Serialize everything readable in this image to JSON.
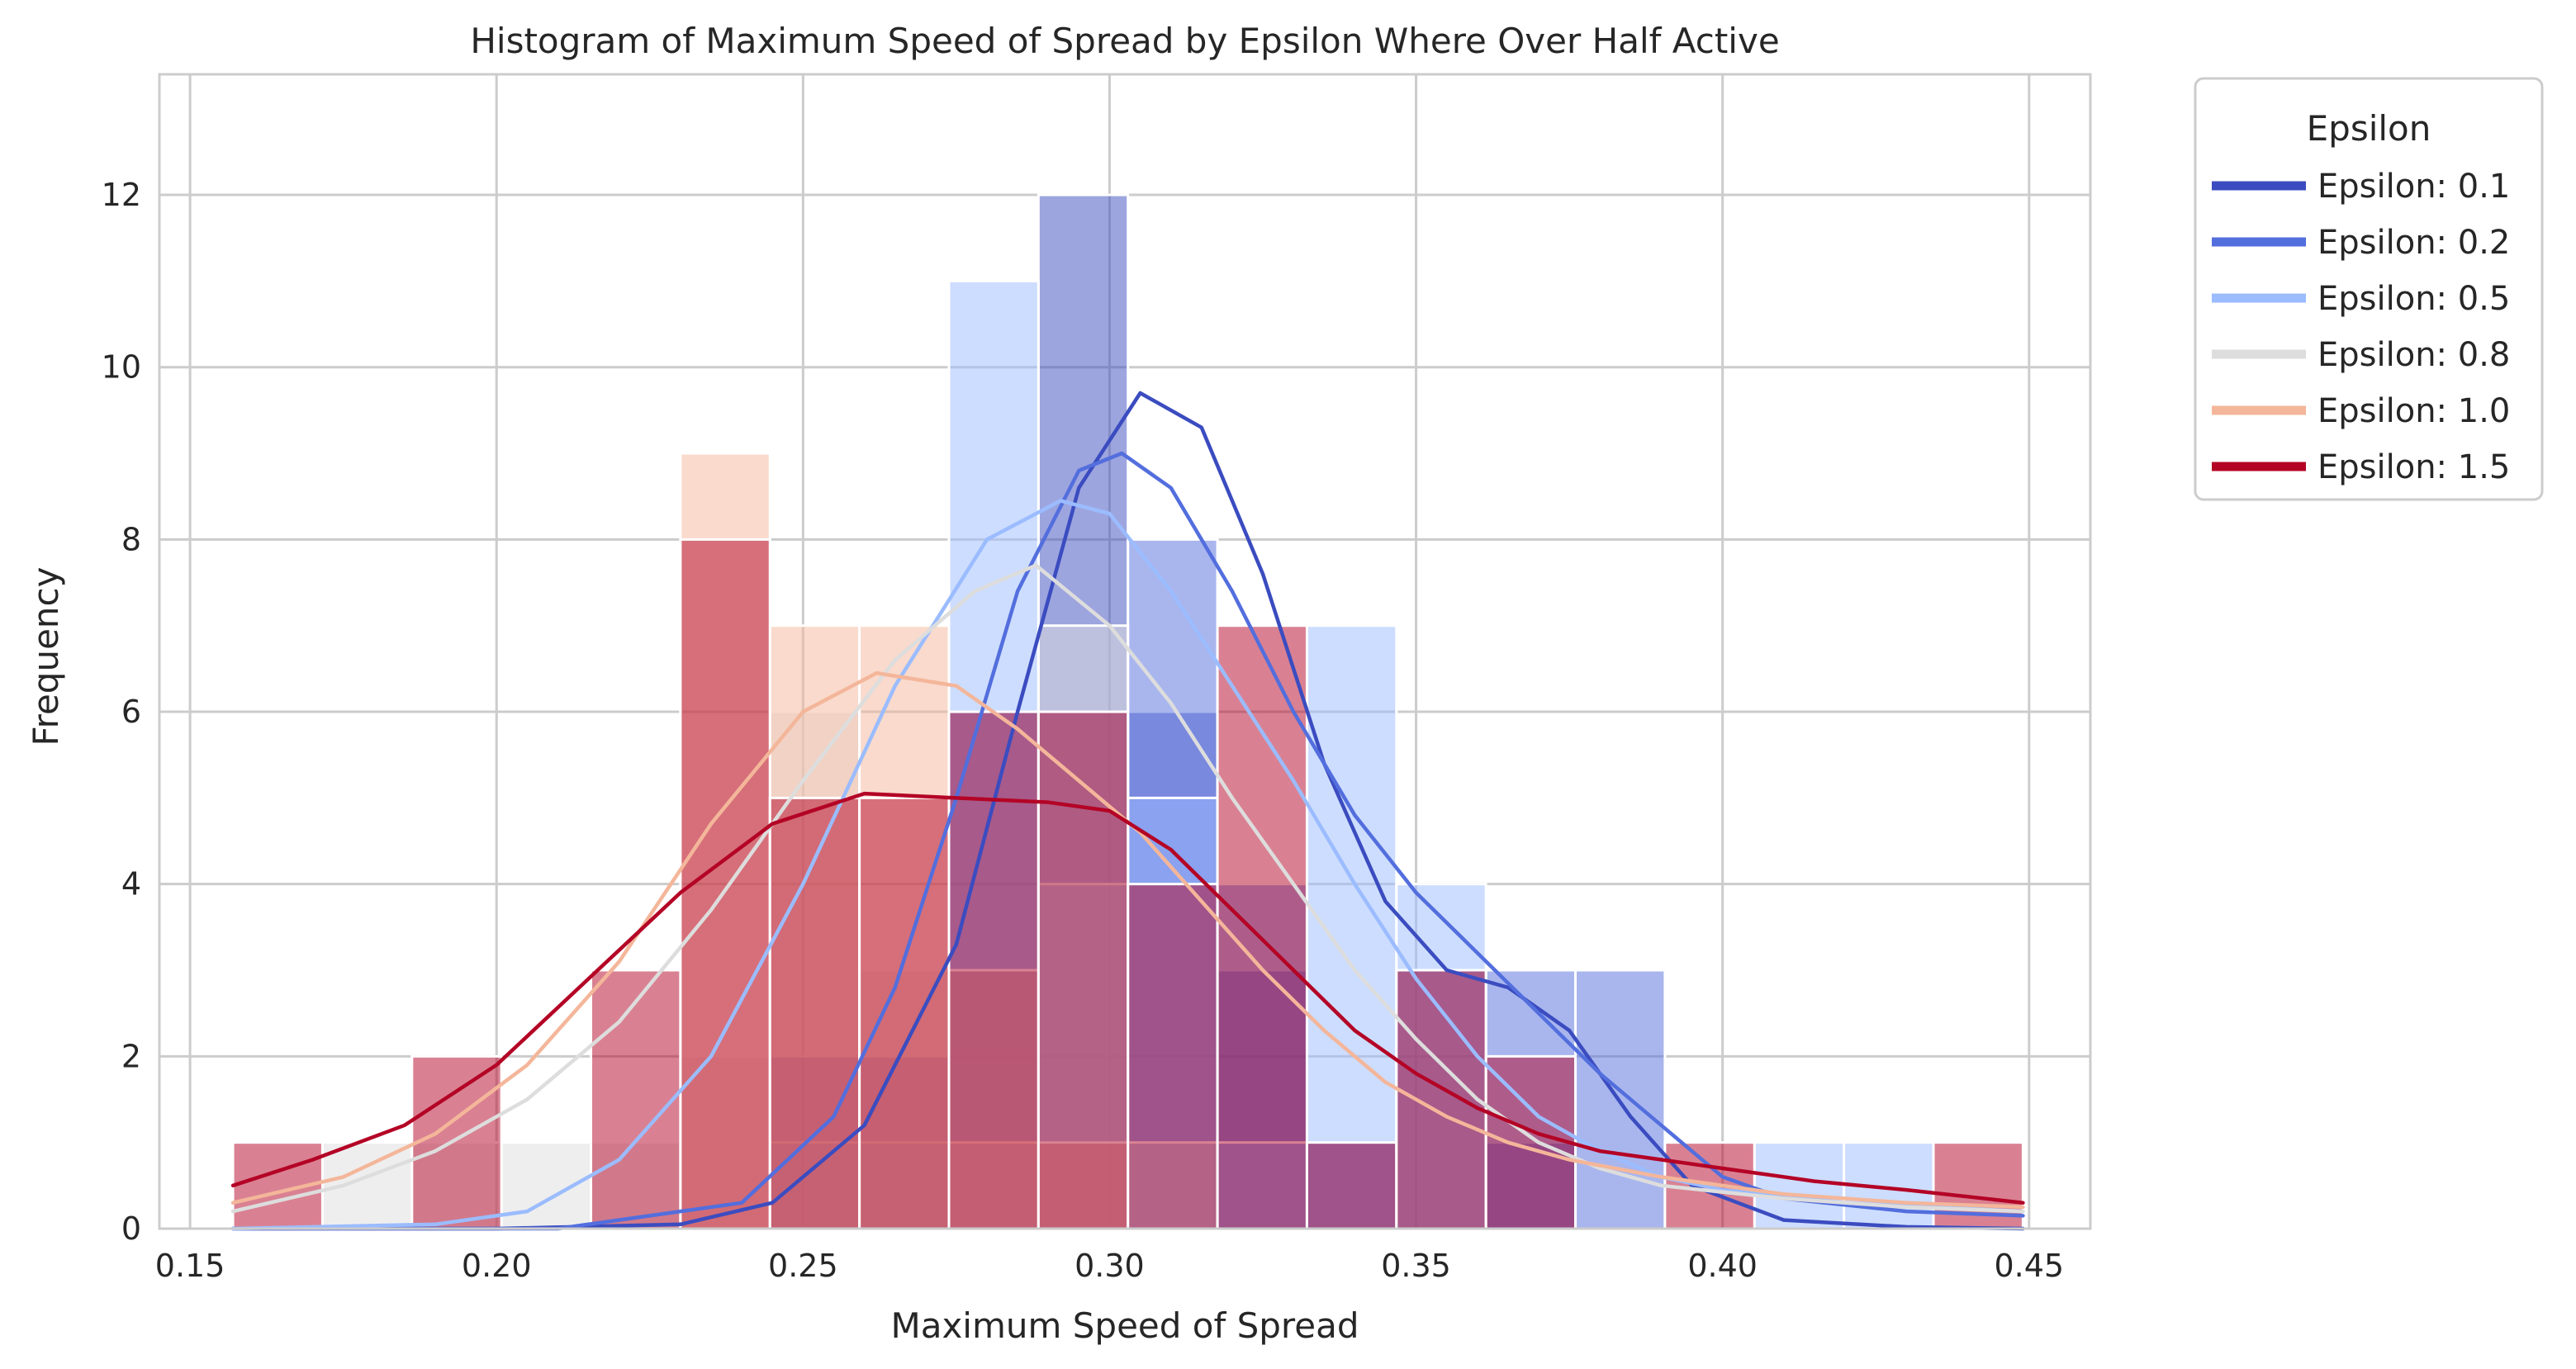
{
  "chart_data": {
    "type": "histogram",
    "title": "Histogram of Maximum Speed of Spread by Epsilon Where Over Half Active",
    "xlabel": "Maximum Speed of Spread",
    "ylabel": "Frequency",
    "xlim": [
      0.145,
      0.46
    ],
    "ylim": [
      0,
      13.4
    ],
    "xticks": [
      0.15,
      0.2,
      0.25,
      0.3,
      0.35,
      0.4,
      0.45
    ],
    "xtick_labels": [
      "0.15",
      "0.20",
      "0.25",
      "0.30",
      "0.35",
      "0.40",
      "0.45"
    ],
    "yticks": [
      0,
      2,
      4,
      6,
      8,
      10,
      12
    ],
    "ytick_labels": [
      "0",
      "2",
      "4",
      "6",
      "8",
      "10",
      "12"
    ],
    "grid": true,
    "legend": {
      "title": "Epsilon",
      "placement": "outside-top-right"
    },
    "bin_edges": [
      0.157,
      0.1716,
      0.1862,
      0.2008,
      0.2154,
      0.23,
      0.2446,
      0.2592,
      0.2738,
      0.2884,
      0.303,
      0.3176,
      0.3322,
      0.3468,
      0.3614,
      0.376,
      0.3906,
      0.4052,
      0.4198,
      0.4344,
      0.449
    ],
    "series": [
      {
        "name": "Epsilon: 0.1",
        "color": "#3b4cc0",
        "counts": [
          0,
          0,
          0,
          0,
          0,
          0,
          2,
          2,
          6,
          12,
          6,
          3,
          1,
          3,
          1,
          0,
          0,
          0,
          0,
          0
        ],
        "kde": [
          [
            0.157,
            0
          ],
          [
            0.2,
            0
          ],
          [
            0.23,
            0.05
          ],
          [
            0.245,
            0.3
          ],
          [
            0.26,
            1.2
          ],
          [
            0.275,
            3.3
          ],
          [
            0.285,
            6.0
          ],
          [
            0.295,
            8.6
          ],
          [
            0.305,
            9.7
          ],
          [
            0.315,
            9.3
          ],
          [
            0.325,
            7.6
          ],
          [
            0.335,
            5.4
          ],
          [
            0.345,
            3.8
          ],
          [
            0.355,
            3.0
          ],
          [
            0.365,
            2.8
          ],
          [
            0.375,
            2.3
          ],
          [
            0.385,
            1.3
          ],
          [
            0.395,
            0.5
          ],
          [
            0.41,
            0.1
          ],
          [
            0.43,
            0.02
          ],
          [
            0.449,
            0
          ]
        ]
      },
      {
        "name": "Epsilon: 0.2",
        "color": "#536edd",
        "counts": [
          0,
          0,
          0,
          0,
          0,
          0,
          0,
          0,
          3,
          6,
          8,
          4,
          1,
          0,
          3,
          3,
          0,
          0,
          0,
          0
        ],
        "kde": [
          [
            0.157,
            0
          ],
          [
            0.21,
            0
          ],
          [
            0.24,
            0.3
          ],
          [
            0.255,
            1.3
          ],
          [
            0.265,
            2.8
          ],
          [
            0.275,
            5.0
          ],
          [
            0.285,
            7.4
          ],
          [
            0.295,
            8.8
          ],
          [
            0.302,
            9.0
          ],
          [
            0.31,
            8.6
          ],
          [
            0.32,
            7.4
          ],
          [
            0.33,
            6.0
          ],
          [
            0.34,
            4.8
          ],
          [
            0.35,
            3.9
          ],
          [
            0.36,
            3.2
          ],
          [
            0.37,
            2.5
          ],
          [
            0.38,
            1.8
          ],
          [
            0.39,
            1.2
          ],
          [
            0.4,
            0.6
          ],
          [
            0.41,
            0.35
          ],
          [
            0.43,
            0.2
          ],
          [
            0.449,
            0.15
          ]
        ]
      },
      {
        "name": "Epsilon: 0.5",
        "color": "#9bbcff",
        "counts": [
          0,
          0,
          0,
          0,
          0,
          0,
          1,
          1,
          11,
          4,
          5,
          1,
          7,
          4,
          0,
          0,
          0,
          1,
          1,
          0
        ],
        "kde": [
          [
            0.157,
            0
          ],
          [
            0.19,
            0.05
          ],
          [
            0.205,
            0.2
          ],
          [
            0.22,
            0.8
          ],
          [
            0.235,
            2.0
          ],
          [
            0.25,
            4.0
          ],
          [
            0.265,
            6.3
          ],
          [
            0.28,
            8.0
          ],
          [
            0.292,
            8.45
          ],
          [
            0.3,
            8.3
          ],
          [
            0.31,
            7.4
          ],
          [
            0.32,
            6.3
          ],
          [
            0.33,
            5.2
          ],
          [
            0.34,
            4.0
          ],
          [
            0.35,
            2.9
          ],
          [
            0.36,
            2.0
          ],
          [
            0.37,
            1.3
          ],
          [
            0.38,
            0.9
          ],
          [
            0.39,
            0.6
          ],
          [
            0.4,
            0.45
          ],
          [
            0.42,
            0.3
          ],
          [
            0.449,
            0.2
          ]
        ]
      },
      {
        "name": "Epsilon: 0.8",
        "color": "#dddddd",
        "counts": [
          0,
          1,
          1,
          1,
          1,
          2,
          6,
          3,
          1,
          7,
          1,
          0,
          0,
          0,
          0,
          0,
          0,
          0,
          0,
          0
        ],
        "kde": [
          [
            0.157,
            0.2
          ],
          [
            0.175,
            0.5
          ],
          [
            0.19,
            0.9
          ],
          [
            0.205,
            1.5
          ],
          [
            0.22,
            2.4
          ],
          [
            0.235,
            3.7
          ],
          [
            0.25,
            5.2
          ],
          [
            0.265,
            6.6
          ],
          [
            0.278,
            7.4
          ],
          [
            0.288,
            7.7
          ],
          [
            0.3,
            7.0
          ],
          [
            0.31,
            6.1
          ],
          [
            0.32,
            5.0
          ],
          [
            0.33,
            4.0
          ],
          [
            0.34,
            3.0
          ],
          [
            0.35,
            2.2
          ],
          [
            0.36,
            1.5
          ],
          [
            0.37,
            1.0
          ],
          [
            0.38,
            0.7
          ],
          [
            0.39,
            0.5
          ],
          [
            0.41,
            0.35
          ],
          [
            0.43,
            0.25
          ],
          [
            0.449,
            0.2
          ]
        ]
      },
      {
        "name": "Epsilon: 1.0",
        "color": "#f4b69a",
        "counts": [
          0,
          0,
          0,
          0,
          0,
          9,
          7,
          7,
          3,
          1,
          0,
          0,
          0,
          0,
          0,
          0,
          0,
          0,
          0,
          0
        ],
        "kde": [
          [
            0.157,
            0.3
          ],
          [
            0.175,
            0.6
          ],
          [
            0.19,
            1.1
          ],
          [
            0.205,
            1.9
          ],
          [
            0.22,
            3.1
          ],
          [
            0.235,
            4.7
          ],
          [
            0.25,
            6.0
          ],
          [
            0.262,
            6.45
          ],
          [
            0.275,
            6.3
          ],
          [
            0.285,
            5.8
          ],
          [
            0.295,
            5.2
          ],
          [
            0.305,
            4.6
          ],
          [
            0.315,
            3.8
          ],
          [
            0.325,
            3.0
          ],
          [
            0.335,
            2.3
          ],
          [
            0.345,
            1.7
          ],
          [
            0.355,
            1.3
          ],
          [
            0.365,
            1.0
          ],
          [
            0.375,
            0.8
          ],
          [
            0.39,
            0.6
          ],
          [
            0.41,
            0.4
          ],
          [
            0.43,
            0.3
          ],
          [
            0.449,
            0.25
          ]
        ]
      },
      {
        "name": "Epsilon: 1.5",
        "color": "#b40426",
        "counts": [
          1,
          0,
          2,
          0,
          3,
          8,
          5,
          5,
          6,
          6,
          4,
          7,
          1,
          3,
          2,
          0,
          1,
          0,
          0,
          1
        ],
        "kde": [
          [
            0.157,
            0.5
          ],
          [
            0.17,
            0.8
          ],
          [
            0.185,
            1.2
          ],
          [
            0.2,
            1.9
          ],
          [
            0.215,
            2.9
          ],
          [
            0.23,
            3.9
          ],
          [
            0.245,
            4.7
          ],
          [
            0.26,
            5.05
          ],
          [
            0.275,
            5.0
          ],
          [
            0.29,
            4.95
          ],
          [
            0.3,
            4.85
          ],
          [
            0.31,
            4.4
          ],
          [
            0.32,
            3.7
          ],
          [
            0.33,
            3.0
          ],
          [
            0.34,
            2.3
          ],
          [
            0.35,
            1.8
          ],
          [
            0.36,
            1.4
          ],
          [
            0.37,
            1.1
          ],
          [
            0.38,
            0.9
          ],
          [
            0.39,
            0.8
          ],
          [
            0.4,
            0.7
          ],
          [
            0.415,
            0.55
          ],
          [
            0.43,
            0.45
          ],
          [
            0.449,
            0.3
          ]
        ]
      }
    ]
  }
}
